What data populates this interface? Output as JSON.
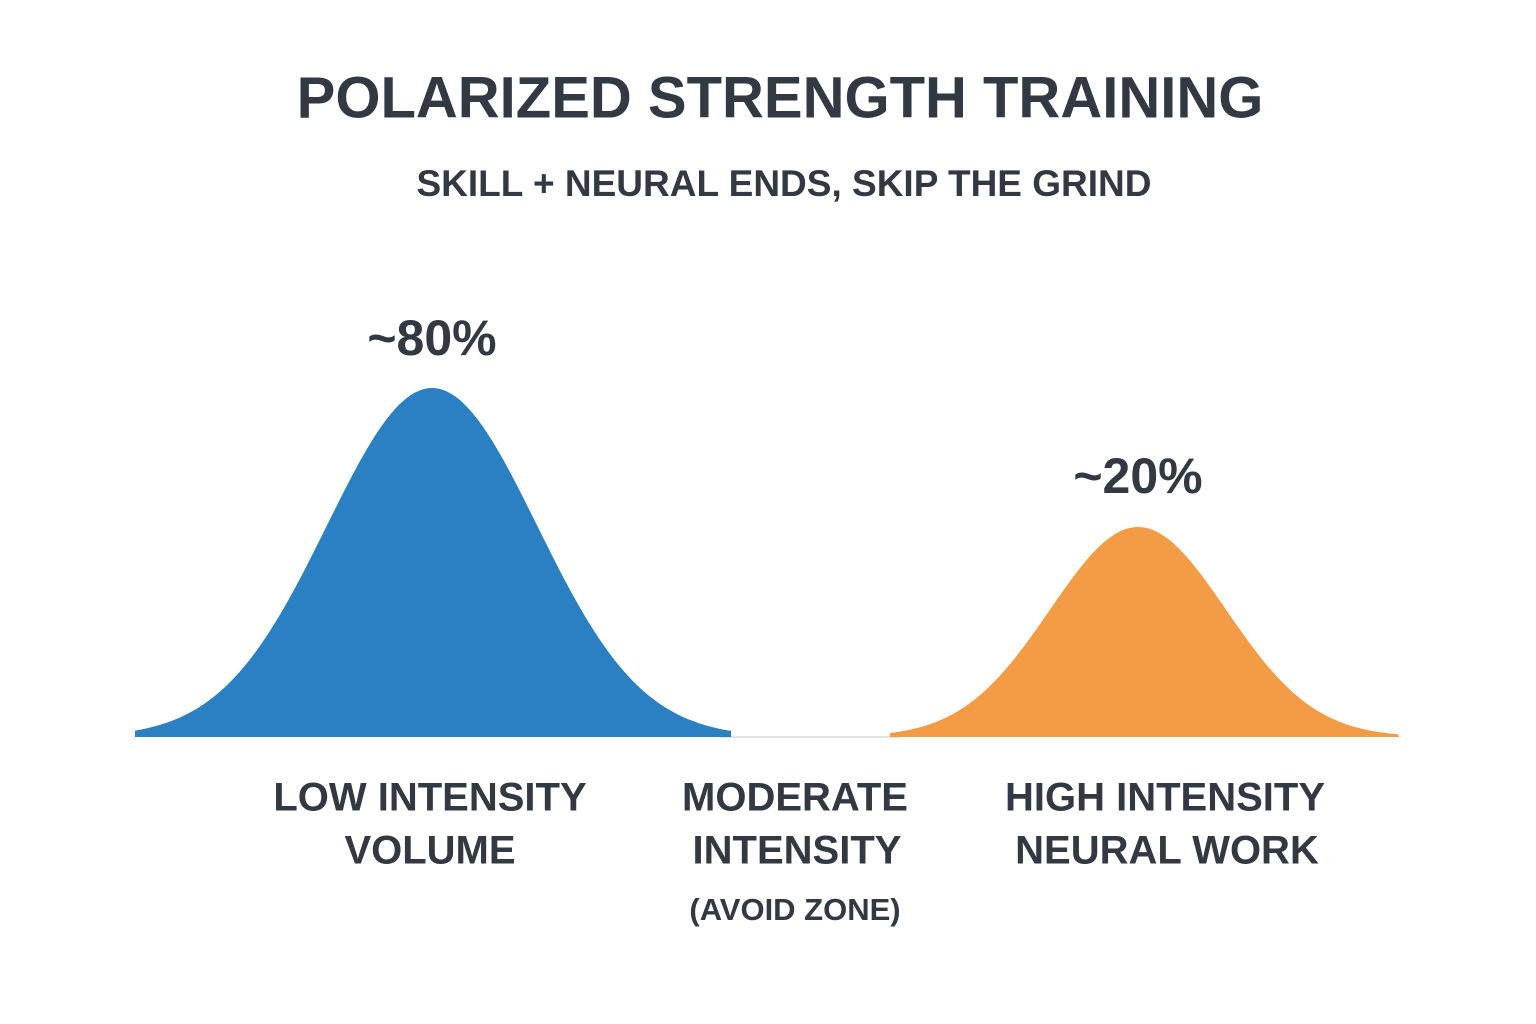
{
  "header": {
    "title": "POLARIZED STRENGTH TRAINING",
    "subtitle": "SKILL + NEURAL ENDS, SKIP THE GRIND"
  },
  "zones": [
    {
      "share": "~80%",
      "lines": [
        "LOW INTENSITY",
        "VOLUME"
      ]
    },
    {
      "lines": [
        "MODERATE",
        "INTENSITY"
      ],
      "note": "(AVOID ZONE)"
    },
    {
      "share": "~20%",
      "lines": [
        "HIGH INTENSITY",
        "NEURAL WORK"
      ]
    }
  ]
}
